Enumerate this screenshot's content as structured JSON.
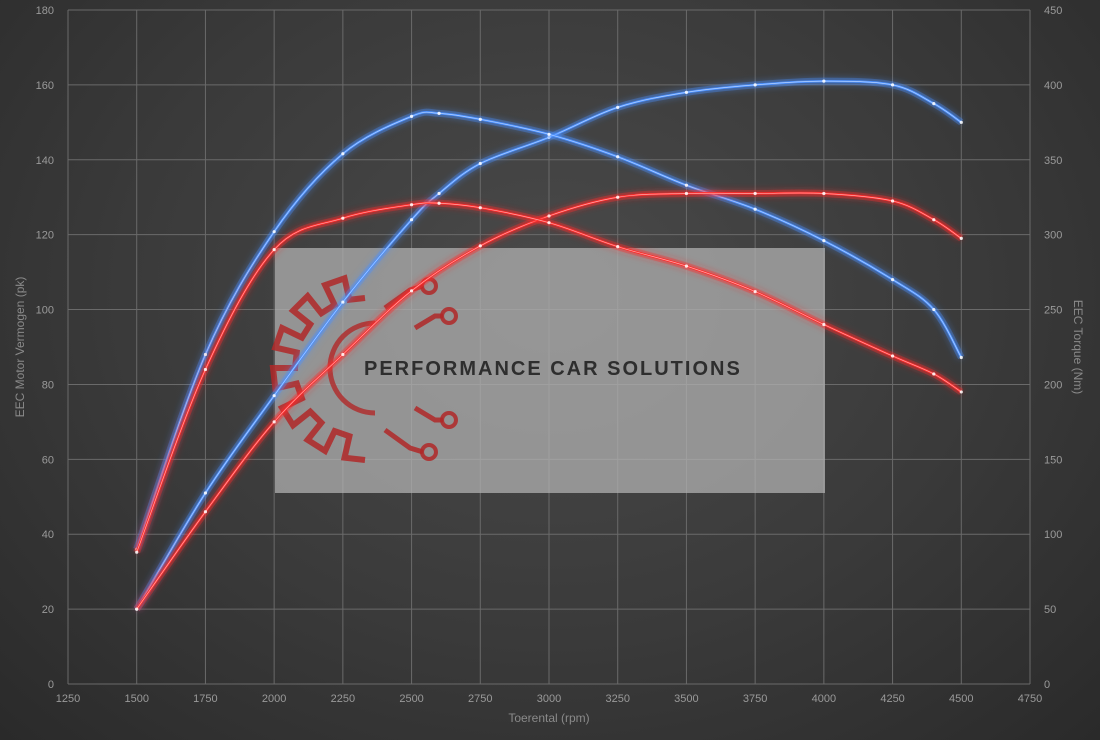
{
  "colors": {
    "blue": "#4a90ff",
    "red": "#ff2b2b",
    "grid": "#6a6a6a",
    "watermark_red": "#b02828"
  },
  "watermark": {
    "text": "PERFORMANCE CAR SOLUTIONS",
    "logo": "gear-circuit-icon"
  },
  "chart_data": {
    "type": "line",
    "title": "",
    "xlabel": "Toerental (rpm)",
    "ylabel": "EEC Motor Vermogen (pk)",
    "y2label": "EEC Torque (Nm)",
    "xlim": [
      1250,
      4750
    ],
    "ylim": [
      0,
      180
    ],
    "y2lim": [
      0,
      450
    ],
    "x_ticks": [
      1250,
      1500,
      1750,
      2000,
      2250,
      2500,
      2750,
      3000,
      3250,
      3500,
      3750,
      4000,
      4250,
      4500,
      4750
    ],
    "y_ticks": [
      0,
      20,
      40,
      60,
      80,
      100,
      120,
      140,
      160,
      180
    ],
    "y2_ticks": [
      0,
      50,
      100,
      150,
      200,
      250,
      300,
      350,
      400,
      450
    ],
    "grid": true,
    "legend": "none",
    "series": [
      {
        "color": "blue",
        "axis": "left",
        "x": [
          1500,
          1750,
          2000,
          2250,
          2500,
          2600,
          2750,
          3000,
          3250,
          3500,
          3750,
          4000,
          4250,
          4400,
          4500
        ],
        "y": [
          20,
          51,
          77,
          102,
          124,
          131,
          139,
          146,
          154,
          158,
          160,
          161,
          160,
          155,
          150
        ]
      },
      {
        "color": "blue",
        "axis": "right",
        "x": [
          1500,
          1750,
          2000,
          2250,
          2500,
          2600,
          2750,
          3000,
          3250,
          3500,
          3750,
          4000,
          4250,
          4400,
          4500
        ],
        "y": [
          90,
          220,
          302,
          354,
          379,
          381,
          377,
          367,
          352,
          333,
          317,
          296,
          270,
          250,
          218
        ]
      },
      {
        "color": "red",
        "axis": "left",
        "x": [
          1500,
          1750,
          2000,
          2250,
          2500,
          2750,
          3000,
          3250,
          3500,
          3750,
          4000,
          4250,
          4400,
          4500
        ],
        "y": [
          20,
          46,
          70,
          88,
          105,
          117,
          125,
          130,
          131,
          131,
          131,
          129,
          124,
          119
        ]
      },
      {
        "color": "red",
        "axis": "right",
        "x": [
          1500,
          1750,
          2000,
          2250,
          2500,
          2600,
          2750,
          3000,
          3250,
          3500,
          3750,
          4000,
          4250,
          4400,
          4500
        ],
        "y": [
          88,
          210,
          290,
          311,
          320,
          321,
          318,
          308,
          292,
          279,
          262,
          240,
          219,
          207,
          195
        ]
      }
    ]
  }
}
